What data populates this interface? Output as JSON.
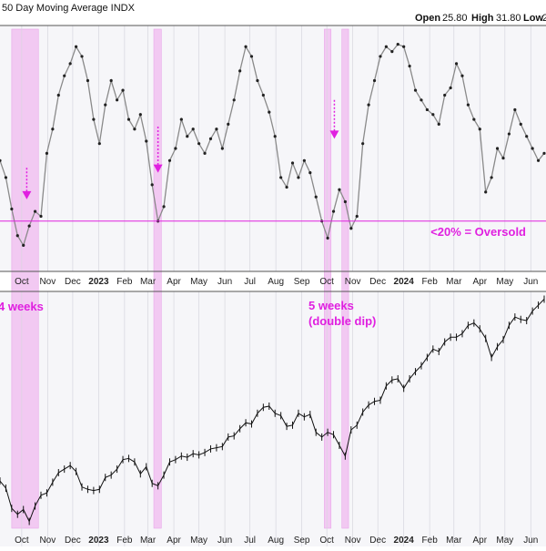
{
  "header": {
    "title": "50 Day Moving Average INDX",
    "open_label": "Open",
    "open_value": "25.80",
    "high_label": "High",
    "high_value": "31.80",
    "low_label": "Low",
    "low_value": "2"
  },
  "colors": {
    "panel_bg": "#f6f6f9",
    "highlight": "#f2c9f2",
    "magenta": "#e020e0",
    "indicator_line": "#8a8a8a",
    "price_line": "#111111",
    "grid": "#d6d6de"
  },
  "chart_data": [
    {
      "type": "line",
      "title": "50 Day Moving Average INDX",
      "unit": "percent of stocks above 50-day moving average",
      "x_tick_labels": [
        "Oct",
        "Nov",
        "Dec",
        "2023",
        "Feb",
        "Mar",
        "Apr",
        "May",
        "Jun",
        "Jul",
        "Aug",
        "Sep",
        "Oct",
        "Nov",
        "Dec",
        "2024",
        "Feb",
        "Mar",
        "Apr",
        "May",
        "Jun"
      ],
      "x_ticks": [
        "2022-10-01",
        "2022-11-01",
        "2022-12-01",
        "2023-01-01",
        "2023-02-01",
        "2023-03-01",
        "2023-04-01",
        "2023-05-01",
        "2023-06-01",
        "2023-07-01",
        "2023-08-01",
        "2023-09-01",
        "2023-10-01",
        "2023-11-01",
        "2023-12-01",
        "2024-01-01",
        "2024-02-01",
        "2024-03-01",
        "2024-04-01",
        "2024-05-01",
        "2024-06-01"
      ],
      "xlim": [
        "2022-09-05",
        "2024-06-17"
      ],
      "ylim": [
        0,
        100
      ],
      "oversold_threshold": 20,
      "oversold_label": "<20% = Oversold",
      "grid": "x only",
      "shaded_periods": [
        {
          "start": "2022-09-19",
          "end": "2022-10-21"
        },
        {
          "start": "2023-03-08",
          "end": "2023-03-17"
        },
        {
          "start": "2023-09-28",
          "end": "2023-10-06"
        },
        {
          "start": "2023-10-19",
          "end": "2023-10-27"
        }
      ],
      "arrows": [
        {
          "x": "2022-10-07",
          "from": 42,
          "to": 29
        },
        {
          "x": "2023-03-13",
          "from": 59,
          "to": 40
        },
        {
          "x": "2023-10-10",
          "from": 70,
          "to": 54
        }
      ],
      "series": [
        {
          "x": [
            "2022-09-05",
            "2022-09-12",
            "2022-09-19",
            "2022-09-26",
            "2022-10-03",
            "2022-10-10",
            "2022-10-17",
            "2022-10-24",
            "2022-10-31",
            "2022-11-07",
            "2022-11-14",
            "2022-11-21",
            "2022-11-28",
            "2022-12-05",
            "2022-12-12",
            "2022-12-19",
            "2022-12-26",
            "2023-01-02",
            "2023-01-09",
            "2023-01-16",
            "2023-01-23",
            "2023-01-30",
            "2023-02-06",
            "2023-02-13",
            "2023-02-20",
            "2023-02-27",
            "2023-03-06",
            "2023-03-13",
            "2023-03-20",
            "2023-03-27",
            "2023-04-03",
            "2023-04-10",
            "2023-04-17",
            "2023-04-24",
            "2023-05-01",
            "2023-05-08",
            "2023-05-15",
            "2023-05-22",
            "2023-05-29",
            "2023-06-05",
            "2023-06-12",
            "2023-06-19",
            "2023-06-26",
            "2023-07-03",
            "2023-07-10",
            "2023-07-17",
            "2023-07-24",
            "2023-07-31",
            "2023-08-07",
            "2023-08-14",
            "2023-08-21",
            "2023-08-28",
            "2023-09-04",
            "2023-09-11",
            "2023-09-18",
            "2023-09-25",
            "2023-10-02",
            "2023-10-09",
            "2023-10-16",
            "2023-10-23",
            "2023-10-30",
            "2023-11-06",
            "2023-11-13",
            "2023-11-20",
            "2023-11-27",
            "2023-12-04",
            "2023-12-11",
            "2023-12-18",
            "2023-12-25",
            "2024-01-01",
            "2024-01-08",
            "2024-01-15",
            "2024-01-22",
            "2024-01-29",
            "2024-02-05",
            "2024-02-12",
            "2024-02-19",
            "2024-02-26",
            "2024-03-04",
            "2024-03-11",
            "2024-03-18",
            "2024-03-25",
            "2024-04-01",
            "2024-04-08",
            "2024-04-15",
            "2024-04-22",
            "2024-04-29",
            "2024-05-06",
            "2024-05-13",
            "2024-05-20",
            "2024-05-27",
            "2024-06-03",
            "2024-06-10",
            "2024-06-17"
          ],
          "y": [
            45,
            38,
            25,
            14,
            10,
            18,
            24,
            22,
            48,
            58,
            72,
            80,
            85,
            92,
            88,
            78,
            62,
            52,
            68,
            78,
            70,
            74,
            62,
            58,
            64,
            53,
            35,
            20,
            26,
            45,
            50,
            62,
            55,
            58,
            52,
            48,
            54,
            58,
            50,
            60,
            70,
            82,
            92,
            88,
            78,
            72,
            65,
            55,
            38,
            34,
            44,
            38,
            45,
            40,
            30,
            20,
            13,
            24,
            33,
            28,
            17,
            22,
            52,
            68,
            78,
            88,
            92,
            90,
            93,
            92,
            84,
            74,
            70,
            66,
            64,
            60,
            72,
            75,
            85,
            80,
            68,
            62,
            58,
            32,
            38,
            50,
            46,
            56,
            66,
            60,
            55,
            50,
            45,
            48
          ]
        }
      ]
    },
    {
      "type": "line",
      "title": "",
      "x_tick_labels": [
        "Oct",
        "Nov",
        "Dec",
        "2023",
        "Feb",
        "Mar",
        "Apr",
        "May",
        "Jun",
        "Jul",
        "Aug",
        "Sep",
        "Oct",
        "Nov",
        "Dec",
        "2024",
        "Feb",
        "Mar",
        "Apr",
        "May",
        "Jun"
      ],
      "x_ticks": [
        "2022-10-01",
        "2022-11-01",
        "2022-12-01",
        "2023-01-01",
        "2023-02-01",
        "2023-03-01",
        "2023-04-01",
        "2023-05-01",
        "2023-06-01",
        "2023-07-01",
        "2023-08-01",
        "2023-09-01",
        "2023-10-01",
        "2023-11-01",
        "2023-12-01",
        "2024-01-01",
        "2024-02-01",
        "2024-03-01",
        "2024-04-01",
        "2024-05-01",
        "2024-06-01"
      ],
      "xlim": [
        "2022-09-05",
        "2024-06-17"
      ],
      "ylim": [
        3400,
        5500
      ],
      "grid": "x only",
      "annotations": [
        {
          "text": "4 weeks",
          "x": "2022-09-10"
        },
        {
          "text": "5 weeks",
          "x": "2023-09-25"
        },
        {
          "text": "(double dip)",
          "x": "2023-09-25"
        }
      ],
      "series": [
        {
          "x": [
            "2022-09-05",
            "2022-09-12",
            "2022-09-19",
            "2022-09-26",
            "2022-10-03",
            "2022-10-10",
            "2022-10-17",
            "2022-10-24",
            "2022-10-31",
            "2022-11-07",
            "2022-11-14",
            "2022-11-21",
            "2022-11-28",
            "2022-12-05",
            "2022-12-12",
            "2022-12-19",
            "2022-12-26",
            "2023-01-02",
            "2023-01-09",
            "2023-01-16",
            "2023-01-23",
            "2023-01-30",
            "2023-02-06",
            "2023-02-13",
            "2023-02-20",
            "2023-02-27",
            "2023-03-06",
            "2023-03-13",
            "2023-03-20",
            "2023-03-27",
            "2023-04-03",
            "2023-04-10",
            "2023-04-17",
            "2023-04-24",
            "2023-05-01",
            "2023-05-08",
            "2023-05-15",
            "2023-05-22",
            "2023-05-29",
            "2023-06-05",
            "2023-06-12",
            "2023-06-19",
            "2023-06-26",
            "2023-07-03",
            "2023-07-10",
            "2023-07-17",
            "2023-07-24",
            "2023-07-31",
            "2023-08-07",
            "2023-08-14",
            "2023-08-21",
            "2023-08-28",
            "2023-09-04",
            "2023-09-11",
            "2023-09-18",
            "2023-09-25",
            "2023-10-02",
            "2023-10-09",
            "2023-10-16",
            "2023-10-23",
            "2023-10-30",
            "2023-11-06",
            "2023-11-13",
            "2023-11-20",
            "2023-11-27",
            "2023-12-04",
            "2023-12-11",
            "2023-12-18",
            "2023-12-25",
            "2024-01-01",
            "2024-01-08",
            "2024-01-15",
            "2024-01-22",
            "2024-01-29",
            "2024-02-05",
            "2024-02-12",
            "2024-02-19",
            "2024-02-26",
            "2024-03-04",
            "2024-03-11",
            "2024-03-18",
            "2024-03-25",
            "2024-04-01",
            "2024-04-08",
            "2024-04-15",
            "2024-04-22",
            "2024-04-29",
            "2024-05-06",
            "2024-05-13",
            "2024-05-20",
            "2024-05-27",
            "2024-06-03",
            "2024-06-10",
            "2024-06-17"
          ],
          "y": [
            3920,
            3860,
            3690,
            3640,
            3680,
            3580,
            3710,
            3800,
            3820,
            3910,
            3990,
            4020,
            4050,
            4000,
            3870,
            3850,
            3840,
            3850,
            3950,
            3970,
            4020,
            4100,
            4110,
            4080,
            3980,
            4040,
            3900,
            3880,
            3970,
            4080,
            4100,
            4130,
            4120,
            4150,
            4140,
            4160,
            4190,
            4200,
            4210,
            4290,
            4300,
            4360,
            4410,
            4400,
            4490,
            4540,
            4550,
            4490,
            4470,
            4380,
            4390,
            4490,
            4460,
            4480,
            4330,
            4290,
            4330,
            4310,
            4220,
            4130,
            4350,
            4390,
            4500,
            4560,
            4590,
            4600,
            4720,
            4770,
            4780,
            4700,
            4780,
            4840,
            4890,
            4960,
            5030,
            5010,
            5090,
            5130,
            5130,
            5160,
            5230,
            5250,
            5200,
            5120,
            4960,
            5050,
            5110,
            5230,
            5300,
            5280,
            5270,
            5350,
            5400,
            5450
          ]
        }
      ]
    }
  ]
}
